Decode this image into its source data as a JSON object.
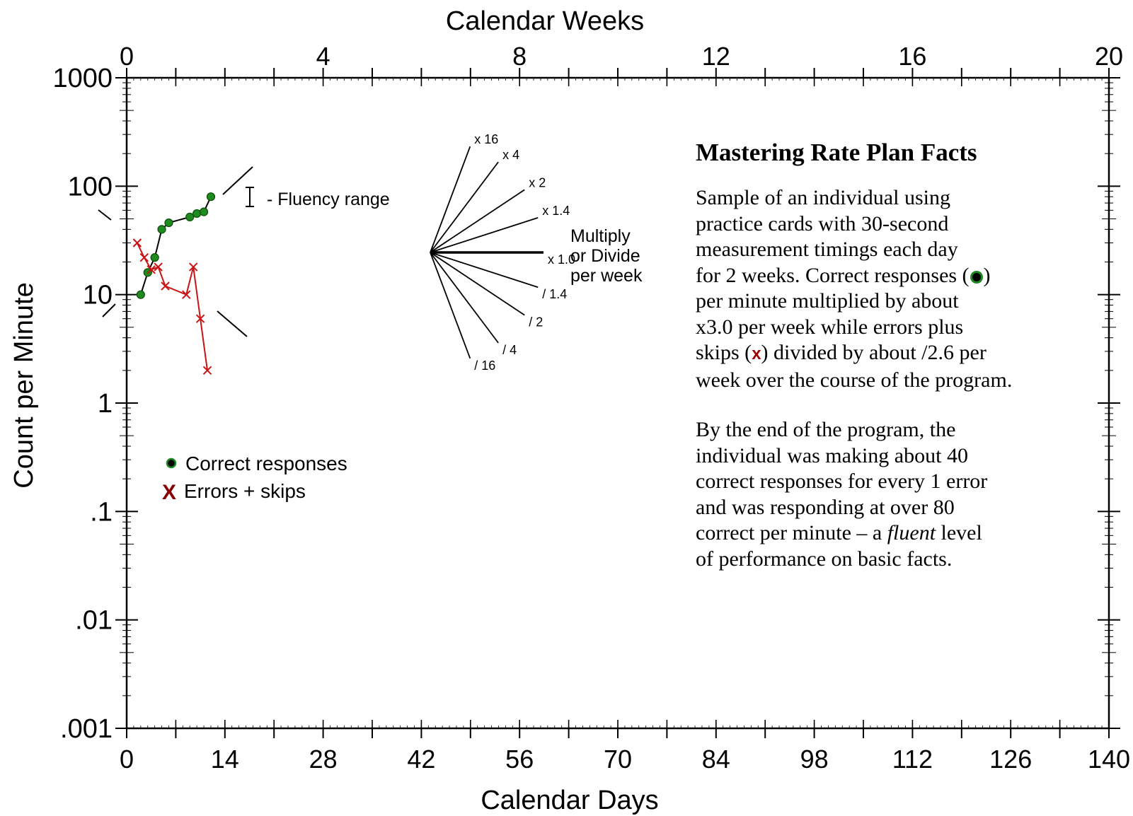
{
  "chart_data": {
    "type": "line",
    "top_axis": {
      "label": "Calendar Weeks",
      "ticks": [
        "0",
        "4",
        "8",
        "12",
        "16",
        "20"
      ],
      "range": [
        0,
        20
      ]
    },
    "x_axis": {
      "label": "Calendar Days",
      "ticks": [
        "0",
        "14",
        "28",
        "42",
        "56",
        "70",
        "84",
        "98",
        "112",
        "126",
        "140"
      ],
      "range": [
        0,
        140
      ]
    },
    "y_axis": {
      "label": "Count per Minute",
      "scale": "log",
      "ticks": [
        "1000",
        "100",
        "10",
        "1",
        ".1",
        ".01",
        ".001"
      ],
      "range": [
        0.001,
        1000
      ]
    },
    "series": [
      {
        "name": "Correct responses",
        "color": "#1f8a1f",
        "marker": "dot",
        "x": [
          2,
          3,
          4,
          5,
          6,
          9,
          10,
          11,
          12
        ],
        "y": [
          10,
          16,
          22,
          40,
          46,
          52,
          56,
          58,
          80
        ]
      },
      {
        "name": "Errors + skips",
        "color": "#c81414",
        "marker": "x",
        "x": [
          1.5,
          2.5,
          3.5,
          4.5,
          5.5,
          8.5,
          9.5,
          10.5,
          11.5
        ],
        "y": [
          30,
          22,
          17,
          18,
          12,
          10,
          18,
          6,
          2
        ]
      }
    ],
    "legend": {
      "placement": "left",
      "items": [
        "Correct responses",
        "Errors + skips"
      ]
    },
    "fluency_label": "- Fluency range",
    "celeration_fan": {
      "title_lines": [
        "Multiply",
        "or Divide",
        "per week"
      ],
      "rays": [
        {
          "label": "x 16",
          "factor": 16
        },
        {
          "label": "x 4",
          "factor": 4
        },
        {
          "label": "x 2",
          "factor": 2
        },
        {
          "label": "x 1.4",
          "factor": 1.4
        },
        {
          "label": "x 1.0",
          "factor": 1.0
        },
        {
          "label": "/ 1.4",
          "factor": 0.714
        },
        {
          "label": "/ 2",
          "factor": 0.5
        },
        {
          "label": "/ 4",
          "factor": 0.25
        },
        {
          "label": "/ 16",
          "factor": 0.0625
        }
      ]
    }
  },
  "panel": {
    "title": "Mastering Rate Plan Facts",
    "p1_l1": "Sample of an individual using",
    "p1_l2": "practice cards with 30-second",
    "p1_l3": "measurement timings each day",
    "p1_l4a": "for 2 weeks. Correct responses (",
    "p1_l4b": ")",
    "p1_l5": "per minute multiplied by about",
    "p1_l6": "x3.0 per week while errors plus",
    "p1_l7a": "skips (",
    "p1_l7x": "x",
    "p1_l7b": ") divided by about  /2.6 per",
    "p1_l8": "week over the course of the program.",
    "p2_l1": "By the end of the program, the",
    "p2_l2": "individual was making about 40",
    "p2_l3": "correct responses for every 1 error",
    "p2_l4": "and was responding at over 80",
    "p2_l5a": "correct per minute – a ",
    "p2_l5i": "fluent",
    "p2_l5b": " level",
    "p2_l6": "of performance on basic facts."
  }
}
